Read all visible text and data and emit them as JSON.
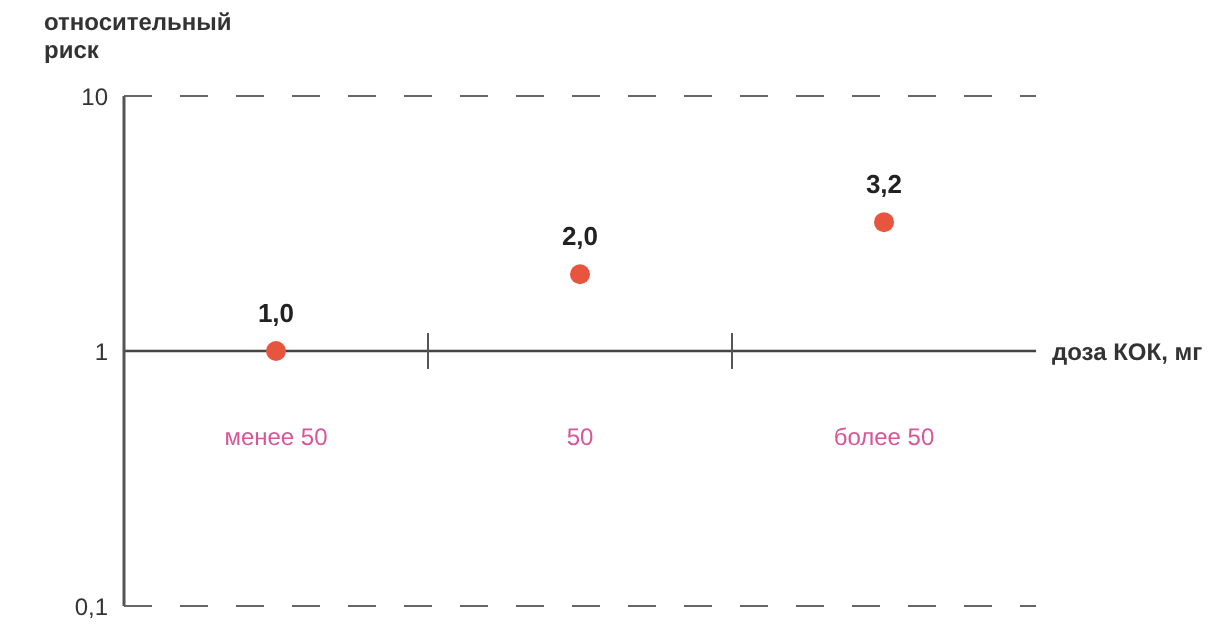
{
  "chart_data": {
    "type": "scatter",
    "ylabel": "относительный риск",
    "xlabel": "доза КОК, мг",
    "categories": [
      "менее 50",
      "50",
      "более 50"
    ],
    "values": [
      1.0,
      2.0,
      3.2
    ],
    "value_labels": [
      "1,0",
      "2,0",
      "3,2"
    ],
    "color": "#e8553f",
    "marker": "circle",
    "log": "y",
    "ylim": [
      0.1,
      10
    ],
    "yticks": [
      10,
      1,
      {
        "value": 0.1,
        "label": "0,1"
      }
    ],
    "grid": "y"
  }
}
